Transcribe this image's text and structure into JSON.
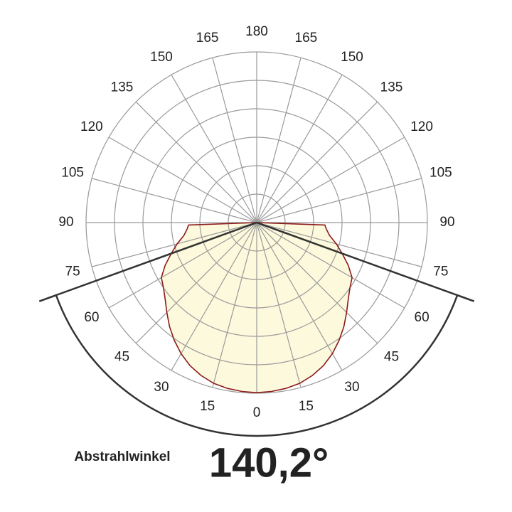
{
  "chart_data": {
    "type": "polar",
    "angles": [
      0,
      5,
      10,
      15,
      20,
      25,
      30,
      35,
      40,
      45,
      50,
      55,
      60,
      65,
      70,
      75,
      80,
      85,
      88,
      90
    ],
    "values": [
      5.98,
      5.96,
      5.92,
      5.85,
      5.72,
      5.55,
      5.32,
      5.05,
      4.77,
      4.47,
      4.2,
      4.0,
      3.87,
      3.55,
      3.2,
      2.9,
      2.6,
      2.45,
      2.4,
      0
    ],
    "color": "#8b1a1a",
    "fill": "#fcf9dc",
    "rlim": [
      0,
      6
    ],
    "rticks": [
      1,
      2,
      3,
      4,
      5,
      6
    ],
    "angle_ticks": [
      0,
      15,
      30,
      45,
      60,
      75,
      90,
      105,
      120,
      135,
      150,
      165,
      180
    ],
    "beam_label": "Abstrahlwinkel",
    "beam_angle": 140.2,
    "beam_angle_label": "140,2°"
  }
}
